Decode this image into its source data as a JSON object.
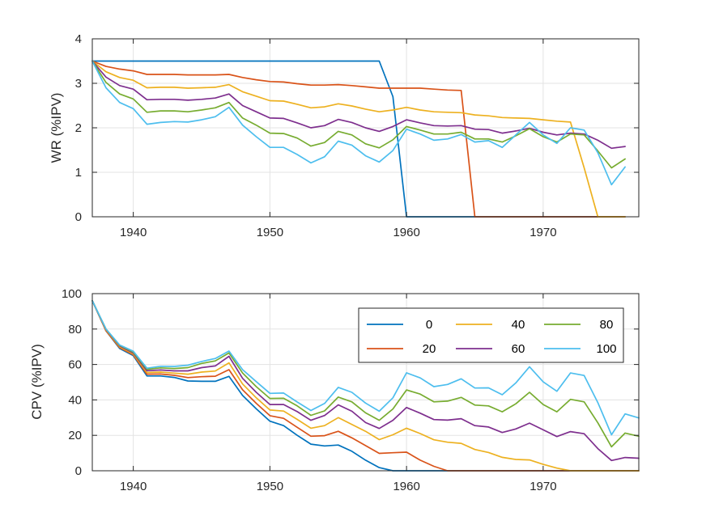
{
  "series_meta": [
    {
      "name": "0",
      "color": "#0072BD"
    },
    {
      "name": "20",
      "color": "#D95319"
    },
    {
      "name": "40",
      "color": "#EDB120"
    },
    {
      "name": "60",
      "color": "#7E2F8E"
    },
    {
      "name": "80",
      "color": "#77AC30"
    },
    {
      "name": "100",
      "color": "#4DBEEE"
    }
  ],
  "chart_data": [
    {
      "type": "line",
      "title": "",
      "xlabel": "",
      "ylabel": "WR (%IPV)",
      "xlim": [
        1937,
        1977
      ],
      "ylim": [
        0,
        4
      ],
      "xticks": [
        1940,
        1950,
        1960,
        1970
      ],
      "yticks": [
        0,
        1,
        2,
        3,
        4
      ],
      "grid": true,
      "x": [
        1937,
        1938,
        1939,
        1940,
        1941,
        1942,
        1943,
        1944,
        1945,
        1946,
        1947,
        1948,
        1949,
        1950,
        1951,
        1952,
        1953,
        1954,
        1955,
        1956,
        1957,
        1958,
        1959,
        1960,
        1961,
        1962,
        1963,
        1964,
        1965,
        1966,
        1967,
        1968,
        1969,
        1970,
        1971,
        1972,
        1973,
        1974,
        1975,
        1976
      ],
      "series": [
        {
          "name": "0",
          "values": [
            3.5,
            3.5,
            3.5,
            3.5,
            3.5,
            3.5,
            3.5,
            3.5,
            3.5,
            3.5,
            3.5,
            3.5,
            3.5,
            3.5,
            3.5,
            3.5,
            3.5,
            3.5,
            3.5,
            3.5,
            3.5,
            3.5,
            2.7,
            0,
            0,
            0,
            0,
            0,
            0,
            0,
            0,
            0,
            0,
            0,
            0,
            0,
            0,
            0,
            0,
            0
          ]
        },
        {
          "name": "20",
          "values": [
            3.5,
            3.38,
            3.32,
            3.28,
            3.2,
            3.2,
            3.2,
            3.19,
            3.19,
            3.19,
            3.2,
            3.13,
            3.08,
            3.04,
            3.03,
            2.99,
            2.96,
            2.96,
            2.97,
            2.95,
            2.92,
            2.89,
            2.89,
            2.89,
            2.89,
            2.87,
            2.85,
            2.84,
            0,
            0,
            0,
            0,
            0,
            0,
            0,
            0,
            0,
            0,
            0,
            0
          ]
        },
        {
          "name": "40",
          "values": [
            3.5,
            3.26,
            3.13,
            3.07,
            2.9,
            2.91,
            2.91,
            2.89,
            2.9,
            2.91,
            2.97,
            2.81,
            2.71,
            2.61,
            2.6,
            2.53,
            2.45,
            2.47,
            2.54,
            2.49,
            2.42,
            2.36,
            2.4,
            2.46,
            2.4,
            2.36,
            2.35,
            2.34,
            2.29,
            2.27,
            2.23,
            2.22,
            2.21,
            2.18,
            2.15,
            2.13,
            1.1,
            0,
            0,
            0
          ]
        },
        {
          "name": "60",
          "values": [
            3.5,
            3.14,
            2.95,
            2.87,
            2.63,
            2.64,
            2.64,
            2.62,
            2.64,
            2.67,
            2.76,
            2.5,
            2.36,
            2.22,
            2.21,
            2.11,
            2,
            2.05,
            2.19,
            2.12,
            2,
            1.92,
            2.03,
            2.18,
            2.11,
            2.05,
            2.04,
            2.05,
            1.97,
            1.96,
            1.88,
            1.93,
            1.99,
            1.9,
            1.84,
            1.88,
            1.86,
            1.72,
            1.54,
            1.58
          ]
        },
        {
          "name": "80",
          "values": [
            3.5,
            3.02,
            2.76,
            2.65,
            2.35,
            2.38,
            2.38,
            2.36,
            2.4,
            2.45,
            2.57,
            2.22,
            2.06,
            1.88,
            1.87,
            1.77,
            1.59,
            1.67,
            1.92,
            1.84,
            1.64,
            1.55,
            1.73,
            2.03,
            1.95,
            1.86,
            1.86,
            1.9,
            1.75,
            1.75,
            1.68,
            1.82,
            1.98,
            1.8,
            1.68,
            1.86,
            1.84,
            1.48,
            1.1,
            1.3
          ]
        },
        {
          "name": "100",
          "values": [
            3.5,
            2.9,
            2.57,
            2.43,
            2.08,
            2.12,
            2.14,
            2.13,
            2.18,
            2.25,
            2.46,
            2.06,
            1.8,
            1.56,
            1.56,
            1.4,
            1.21,
            1.35,
            1.7,
            1.61,
            1.37,
            1.23,
            1.49,
            1.97,
            1.86,
            1.72,
            1.75,
            1.85,
            1.68,
            1.71,
            1.56,
            1.84,
            2.12,
            1.84,
            1.65,
            2,
            1.95,
            1.44,
            0.72,
            1.12
          ]
        }
      ]
    },
    {
      "type": "line",
      "title": "",
      "xlabel": "",
      "ylabel": "CPV (%IPV)",
      "xlim": [
        1937,
        1977
      ],
      "ylim": [
        0,
        100
      ],
      "xticks": [
        1940,
        1950,
        1960,
        1970
      ],
      "yticks": [
        0,
        20,
        40,
        60,
        80,
        100
      ],
      "grid": true,
      "legend_placement": "upper-right (3 columns)",
      "x": [
        1937,
        1938,
        1939,
        1940,
        1941,
        1942,
        1943,
        1944,
        1945,
        1946,
        1947,
        1948,
        1949,
        1950,
        1951,
        1952,
        1953,
        1954,
        1955,
        1956,
        1957,
        1958,
        1959,
        1960,
        1961,
        1962,
        1963,
        1964,
        1965,
        1966,
        1967,
        1968,
        1969,
        1970,
        1971,
        1972,
        1973,
        1974,
        1975,
        1976,
        1977
      ],
      "series": [
        {
          "name": "0",
          "values": [
            96,
            79,
            69,
            65,
            53.5,
            53.5,
            52.7,
            50.7,
            50.5,
            50.5,
            53.3,
            42.5,
            35,
            28,
            25.5,
            20,
            15,
            14,
            14.5,
            11,
            6,
            1.8,
            0,
            0,
            0,
            0,
            0,
            0,
            0,
            0,
            0,
            0,
            0,
            0,
            0,
            0,
            0,
            0,
            0,
            0,
            0
          ]
        },
        {
          "name": "20",
          "values": [
            96,
            79,
            69.5,
            65.5,
            54.5,
            54.6,
            53.9,
            52.6,
            53.1,
            53.4,
            57.1,
            45.7,
            38.1,
            31.1,
            29.6,
            24.5,
            19.5,
            19.8,
            22.3,
            18.6,
            14.2,
            9.8,
            10.2,
            10.5,
            6,
            2.5,
            0,
            0,
            0,
            0,
            0,
            0,
            0,
            0,
            0,
            0,
            0,
            0,
            0,
            0,
            0
          ]
        },
        {
          "name": "40",
          "values": [
            96,
            79.5,
            70,
            66,
            55.5,
            55.7,
            55.1,
            54.5,
            55.7,
            56.3,
            60.9,
            49,
            41.2,
            34.3,
            33.7,
            29,
            24,
            25.5,
            30,
            26.1,
            22.3,
            17.6,
            20.3,
            24,
            21,
            17.5,
            16.1,
            15.5,
            12,
            10.3,
            7.6,
            6.4,
            6.1,
            3.6,
            1.5,
            0,
            0,
            0,
            0,
            0,
            0
          ]
        },
        {
          "name": "60",
          "values": [
            96,
            79.8,
            70.5,
            66.5,
            56.5,
            56.9,
            56.4,
            56.4,
            58.2,
            59.2,
            64.6,
            52.2,
            44.3,
            37.4,
            37.4,
            33.4,
            28.5,
            31.2,
            37.2,
            33.6,
            27.2,
            23.9,
            28.5,
            35.7,
            32.5,
            28.9,
            28.6,
            29.4,
            25.5,
            24.7,
            21.6,
            23.6,
            26.9,
            23.1,
            19.3,
            22.1,
            20.9,
            12.5,
            5.8,
            7.5,
            7.1
          ]
        },
        {
          "name": "80",
          "values": [
            96,
            80,
            70.8,
            67,
            57.3,
            58.1,
            57.7,
            58.2,
            60.6,
            62,
            66.5,
            55.2,
            47.5,
            40.8,
            40.9,
            36.6,
            31.3,
            33.8,
            41.6,
            38.9,
            32.7,
            28.5,
            34.9,
            45.6,
            43.3,
            38.9,
            39.3,
            41.4,
            37.1,
            36.6,
            33.3,
            37.8,
            44.3,
            37.4,
            33.3,
            40.3,
            38.9,
            27.1,
            13.5,
            21.3,
            19.5
          ]
        },
        {
          "name": "100",
          "values": [
            96,
            80,
            71,
            67.5,
            57.9,
            59,
            58.9,
            59.6,
            61.7,
            63.4,
            67.6,
            57.1,
            50.3,
            43.7,
            43.9,
            38.8,
            34,
            38,
            47.1,
            44.3,
            38.2,
            33.6,
            41.2,
            55.3,
            52.4,
            47.5,
            48.7,
            51.9,
            46.7,
            46.8,
            42.9,
            49.6,
            58.7,
            50.2,
            44.9,
            55.2,
            53.8,
            38.5,
            20.3,
            32.1,
            29.8
          ]
        }
      ]
    }
  ]
}
